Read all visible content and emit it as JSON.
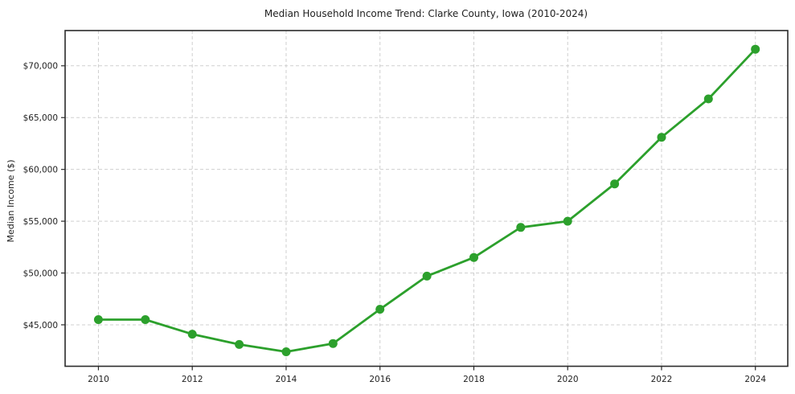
{
  "chart_data": {
    "type": "line",
    "title": "Median Household Income Trend: Clarke County, Iowa (2010-2024)",
    "xlabel": "",
    "ylabel": "Median Income ($)",
    "x": [
      2010,
      2011,
      2012,
      2013,
      2014,
      2015,
      2016,
      2017,
      2018,
      2019,
      2020,
      2021,
      2022,
      2023,
      2024
    ],
    "values": [
      45500,
      45500,
      44100,
      43100,
      42400,
      43200,
      46500,
      49700,
      51500,
      54400,
      55000,
      58600,
      63100,
      66800,
      71600
    ],
    "x_ticks": [
      {
        "value": 2010,
        "label": "2010"
      },
      {
        "value": 2012,
        "label": "2012"
      },
      {
        "value": 2014,
        "label": "2014"
      },
      {
        "value": 2016,
        "label": "2016"
      },
      {
        "value": 2018,
        "label": "2018"
      },
      {
        "value": 2020,
        "label": "2020"
      },
      {
        "value": 2022,
        "label": "2022"
      },
      {
        "value": 2024,
        "label": "2024"
      }
    ],
    "y_ticks": [
      {
        "value": 45000,
        "label": "$45,000"
      },
      {
        "value": 50000,
        "label": "$50,000"
      },
      {
        "value": 55000,
        "label": "$55,000"
      },
      {
        "value": 60000,
        "label": "$60,000"
      },
      {
        "value": 65000,
        "label": "$65,000"
      },
      {
        "value": 70000,
        "label": "$70,000"
      }
    ],
    "xlim": [
      2009.29,
      2024.69
    ],
    "ylim": [
      41000,
      73400
    ],
    "grid": true,
    "grid_style": "dashed",
    "legend": "none",
    "line_color": "#2ca02c",
    "grid_color": "#cfcfcf",
    "spine_color": "#2b2b2b",
    "text_color": "#1f1f1f",
    "marker": "circle"
  }
}
